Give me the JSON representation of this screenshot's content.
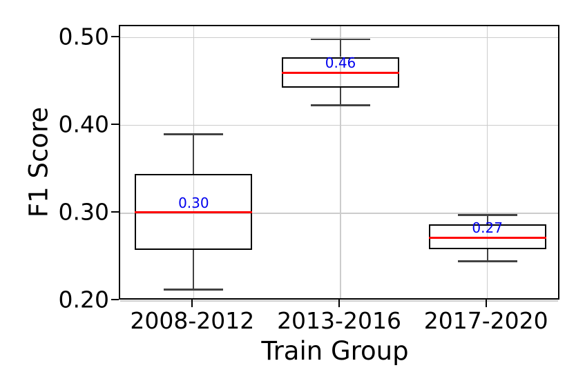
{
  "chart_data": {
    "type": "box",
    "title": "",
    "xlabel": "Train Group",
    "ylabel": "F1 Score",
    "categories": [
      "2008-2012",
      "2013-2016",
      "2017-2020"
    ],
    "ylim": [
      0.2,
      0.513
    ],
    "yticks": [
      0.2,
      0.3,
      0.4,
      0.5
    ],
    "ytick_labels": [
      "0.20",
      "0.30",
      "0.40",
      "0.50"
    ],
    "grid": true,
    "legend_position": "none",
    "boxes": [
      {
        "category": "2008-2012",
        "whisker_low": 0.213,
        "q1": 0.258,
        "median": 0.301,
        "q3": 0.345,
        "whisker_high": 0.39,
        "median_label": "0.30"
      },
      {
        "category": "2013-2016",
        "whisker_low": 0.423,
        "q1": 0.443,
        "median": 0.46,
        "q3": 0.478,
        "whisker_high": 0.498,
        "median_label": "0.46"
      },
      {
        "category": "2017-2020",
        "whisker_low": 0.245,
        "q1": 0.259,
        "median": 0.272,
        "q3": 0.287,
        "whisker_high": 0.298,
        "median_label": "0.27"
      }
    ],
    "colors": {
      "box_edge": "#000000",
      "median_line": "#ff0000",
      "median_label": "#0000ee",
      "whisker": "#424242",
      "grid": "#cccccc",
      "spine": "#000000",
      "background": "#ffffff",
      "text": "#000000"
    }
  }
}
